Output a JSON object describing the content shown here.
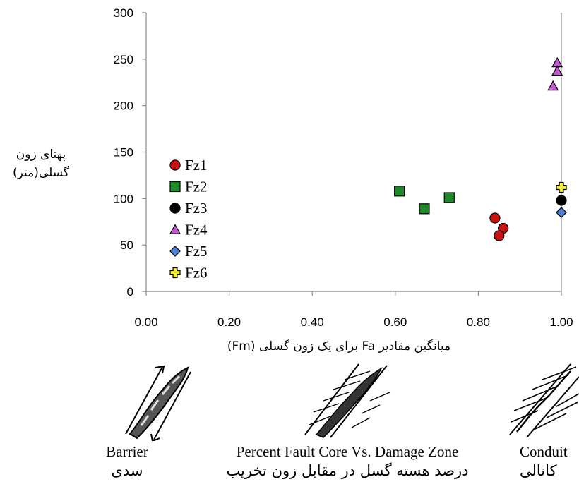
{
  "chart_data": {
    "type": "scatter",
    "xlabel": "میانگین مقادیر Fa برای یک زون گسلی (Fm)",
    "ylabel_line1": "پهنای زون",
    "ylabel_line2": "گسلی(متر)",
    "xlim": [
      0,
      1
    ],
    "ylim": [
      0,
      300
    ],
    "x_ticks": [
      "0.00",
      "0.20",
      "0.40",
      "0.60",
      "0.80",
      "1.00"
    ],
    "y_ticks": [
      "0",
      "50",
      "100",
      "150",
      "200",
      "250",
      "300"
    ],
    "legend_position": "left",
    "series": [
      {
        "name": "Fz1",
        "marker": "circle",
        "color": "#cc1111",
        "points": [
          [
            0.84,
            79
          ],
          [
            0.86,
            68
          ],
          [
            0.85,
            60
          ]
        ]
      },
      {
        "name": "Fz2",
        "marker": "square",
        "color": "#1f8a2a",
        "points": [
          [
            0.61,
            108
          ],
          [
            0.67,
            89
          ],
          [
            0.73,
            101
          ]
        ]
      },
      {
        "name": "Fz3",
        "marker": "circle",
        "color": "#000000",
        "points": [
          [
            1.0,
            98
          ]
        ]
      },
      {
        "name": "Fz4",
        "marker": "triangle",
        "color": "#c857d6",
        "points": [
          [
            0.99,
            246
          ],
          [
            0.99,
            237
          ],
          [
            0.98,
            221
          ]
        ]
      },
      {
        "name": "Fz5",
        "marker": "diamond",
        "color": "#4f7fd6",
        "points": [
          [
            1.0,
            85
          ]
        ]
      },
      {
        "name": "Fz6",
        "marker": "plus",
        "color": "#f4ee3a",
        "points": [
          [
            1.0,
            112
          ]
        ]
      }
    ]
  },
  "diagrams": [
    {
      "label_en": "Barrier",
      "label_fa": "سدی"
    },
    {
      "label_en": "Percent Fault Core Vs. Damage Zone",
      "label_fa": "درصد هسته گسل در مقابل زون تخریب"
    },
    {
      "label_en": "Conduit",
      "label_fa": "کانالی"
    }
  ]
}
